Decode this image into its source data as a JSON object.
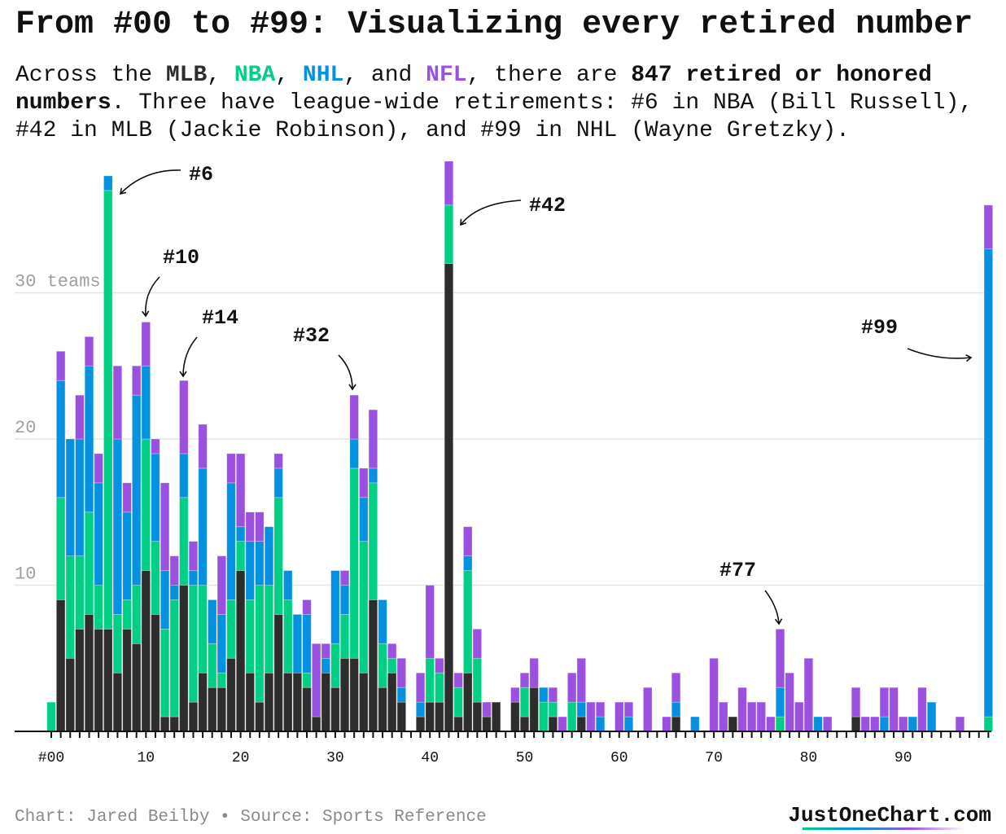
{
  "title": "From #00 to #99: Visualizing every retired number",
  "subtitle": {
    "p1": "Across the ",
    "mlb": "MLB",
    "p2": ", ",
    "nba": "NBA",
    "p3": ", ",
    "nhl": "NHL",
    "p4": ", and ",
    "nfl": "NFL",
    "p5": ", there are ",
    "highlight": "847 retired or honored numbers",
    "p6": ". Three have league-wide retirements: #6 in NBA (Bill Russell), #42 in MLB (Jackie Robinson), and #99 in NHL (Wayne Gretzky)."
  },
  "footer": {
    "credit": "Chart: Jared Beilby • Source: Sports Reference",
    "brand": "JustOneChart.com"
  },
  "chart_data": {
    "type": "bar",
    "stacked": true,
    "categories_from": 0,
    "categories_to": 99,
    "x_tick_labels": [
      "#00",
      "10",
      "20",
      "30",
      "40",
      "50",
      "60",
      "70",
      "80",
      "90"
    ],
    "y_tick_labels": [
      "10",
      "20",
      "30 teams"
    ],
    "y_ticks": [
      10,
      20,
      30
    ],
    "ylim": [
      0,
      39
    ],
    "grid": true,
    "series": [
      {
        "name": "MLB",
        "color": "#2d2d2d",
        "values": [
          0,
          9,
          5,
          7,
          8,
          7,
          7,
          4,
          7,
          6,
          11,
          8,
          1,
          1,
          10,
          2,
          4,
          3,
          3,
          5,
          11,
          4,
          2,
          4,
          8,
          4,
          4,
          3,
          1,
          4,
          3,
          5,
          5,
          4,
          9,
          3,
          4,
          2,
          0,
          1,
          2,
          2,
          32,
          1,
          4,
          2,
          1,
          2,
          0,
          2,
          1,
          3,
          0,
          1,
          0,
          0,
          1,
          0,
          0,
          0,
          0,
          0,
          0,
          0,
          0,
          0,
          1,
          0,
          0,
          0,
          0,
          0,
          1,
          0,
          0,
          0,
          0,
          0,
          0,
          0,
          0,
          0,
          0,
          0,
          0,
          1,
          0,
          0,
          0,
          0,
          0,
          0,
          0,
          0,
          0,
          0,
          0,
          0,
          0,
          0
        ]
      },
      {
        "name": "NBA",
        "color": "#00cf85",
        "values": [
          2,
          7,
          7,
          5,
          7,
          3,
          30,
          4,
          2,
          4,
          9,
          5,
          6,
          8,
          6,
          8,
          6,
          3,
          1,
          4,
          2,
          5,
          8,
          6,
          8,
          5,
          0,
          1,
          0,
          0,
          3,
          3,
          13,
          9,
          8,
          3,
          1,
          0,
          0,
          0,
          3,
          2,
          4,
          2,
          7,
          3,
          0,
          0,
          0,
          0,
          2,
          0,
          2,
          1,
          0,
          2,
          0,
          0,
          0,
          0,
          0,
          0,
          0,
          0,
          0,
          0,
          0,
          0,
          0,
          0,
          0,
          0,
          0,
          0,
          0,
          0,
          0,
          1,
          0,
          0,
          0,
          0,
          0,
          0,
          0,
          0,
          0,
          0,
          0,
          0,
          0,
          0,
          0,
          0,
          0,
          0,
          0,
          0,
          0,
          1
        ]
      },
      {
        "name": "NHL",
        "color": "#0492e0",
        "values": [
          0,
          8,
          8,
          8,
          10,
          7,
          1,
          12,
          6,
          13,
          5,
          6,
          4,
          1,
          3,
          1,
          8,
          3,
          4,
          8,
          1,
          4,
          3,
          4,
          2,
          2,
          4,
          4,
          0,
          1,
          5,
          2,
          2,
          3,
          1,
          3,
          0,
          1,
          0,
          1,
          0,
          0,
          0,
          0,
          1,
          0,
          0,
          0,
          0,
          0,
          0,
          0,
          1,
          0,
          0,
          0,
          1,
          0,
          1,
          0,
          0,
          1,
          0,
          0,
          0,
          0,
          1,
          0,
          1,
          0,
          0,
          0,
          0,
          0,
          0,
          0,
          0,
          2,
          0,
          0,
          0,
          1,
          0,
          0,
          0,
          0,
          0,
          0,
          1,
          0,
          0,
          1,
          0,
          2,
          0,
          0,
          0,
          0,
          0,
          32
        ]
      },
      {
        "name": "NFL",
        "color": "#9b51e0",
        "values": [
          0,
          2,
          0,
          3,
          2,
          2,
          0,
          5,
          2,
          2,
          3,
          1,
          6,
          2,
          5,
          2,
          3,
          0,
          4,
          2,
          5,
          2,
          2,
          0,
          1,
          0,
          0,
          1,
          5,
          1,
          0,
          1,
          3,
          2,
          4,
          0,
          1,
          2,
          0,
          2,
          5,
          1,
          3,
          1,
          2,
          2,
          1,
          0,
          0,
          1,
          1,
          2,
          0,
          1,
          1,
          2,
          3,
          2,
          1,
          0,
          2,
          1,
          0,
          3,
          0,
          1,
          2,
          0,
          0,
          0,
          5,
          2,
          0,
          3,
          2,
          2,
          1,
          4,
          4,
          2,
          5,
          0,
          1,
          0,
          0,
          2,
          1,
          1,
          2,
          3,
          1,
          0,
          3,
          0,
          0,
          0,
          1,
          0,
          0,
          3
        ]
      }
    ],
    "annotations": [
      {
        "label": "#6",
        "number": 6
      },
      {
        "label": "#10",
        "number": 10
      },
      {
        "label": "#14",
        "number": 14
      },
      {
        "label": "#32",
        "number": 32
      },
      {
        "label": "#42",
        "number": 42
      },
      {
        "label": "#77",
        "number": 77
      },
      {
        "label": "#99",
        "number": 99
      }
    ]
  }
}
